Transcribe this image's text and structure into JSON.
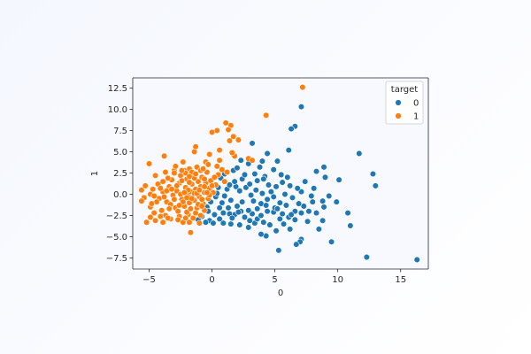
{
  "chart_data": {
    "type": "scatter",
    "title": "",
    "xlabel": "0",
    "ylabel": "1",
    "xlim": [
      -6.3,
      17.2
    ],
    "ylim": [
      -8.8,
      13.7
    ],
    "xticks": [
      -5,
      0,
      5,
      10,
      15
    ],
    "xtick_labels": [
      "−5",
      "0",
      "5",
      "10",
      "15"
    ],
    "yticks": [
      -7.5,
      -5.0,
      -2.5,
      0.0,
      2.5,
      5.0,
      7.5,
      10.0,
      12.5
    ],
    "ytick_labels": [
      "−7.5",
      "−5.0",
      "−2.5",
      "0.0",
      "2.5",
      "5.0",
      "7.5",
      "10.0",
      "12.5"
    ],
    "grid": false,
    "legend": {
      "title": "target",
      "placement": "top-right",
      "entries": [
        "0",
        "1"
      ]
    },
    "colors": {
      "0": "#1f77b4",
      "1": "#ff7f0e",
      "marker_edge": "#ffffff",
      "axes": "#262626",
      "plot_background": "#f7f9fe"
    },
    "series": [
      {
        "name": "0",
        "points": [
          [
            16.3,
            -7.7
          ],
          [
            12.3,
            -7.4
          ],
          [
            9.5,
            -5.6
          ],
          [
            11.7,
            4.8
          ],
          [
            12.8,
            2.4
          ],
          [
            13.0,
            1.0
          ],
          [
            10.1,
            1.7
          ],
          [
            9.0,
            2.0
          ],
          [
            10.8,
            -2.2
          ],
          [
            11.0,
            -3.7
          ],
          [
            9.3,
            -0.2
          ],
          [
            8.9,
            3.2
          ],
          [
            8.3,
            2.7
          ],
          [
            8.8,
            -0.8
          ],
          [
            7.1,
            10.3
          ],
          [
            6.6,
            8.0
          ],
          [
            6.3,
            7.7
          ],
          [
            6.1,
            5.2
          ],
          [
            5.2,
            3.9
          ],
          [
            3.2,
            6.0
          ],
          [
            4.4,
            4.8
          ],
          [
            7.1,
            -5.3
          ],
          [
            7.0,
            -5.6
          ],
          [
            6.7,
            -5.9
          ],
          [
            5.3,
            -6.6
          ],
          [
            6.2,
            -4.1
          ],
          [
            5.1,
            -4.3
          ],
          [
            4.3,
            -4.9
          ],
          [
            3.9,
            -4.7
          ],
          [
            8.5,
            -4.1
          ],
          [
            8.8,
            -3.1
          ],
          [
            8.3,
            -2.2
          ],
          [
            7.7,
            -2.0
          ],
          [
            7.1,
            -2.2
          ],
          [
            6.6,
            -2.0
          ],
          [
            6.1,
            -2.7
          ],
          [
            5.6,
            -2.3
          ],
          [
            5.4,
            -2.9
          ],
          [
            4.9,
            -2.1
          ],
          [
            5.4,
            -1.0
          ],
          [
            6.4,
            -0.4
          ],
          [
            7.1,
            0.3
          ],
          [
            7.9,
            -0.2
          ],
          [
            8.1,
            0.7
          ],
          [
            6.8,
            0.7
          ],
          [
            6.2,
            1.0
          ],
          [
            5.6,
            1.4
          ],
          [
            5.1,
            0.9
          ],
          [
            4.7,
            0.3
          ],
          [
            4.4,
            -0.6
          ],
          [
            3.9,
            -1.1
          ],
          [
            3.6,
            -1.7
          ],
          [
            3.2,
            -2.3
          ],
          [
            2.6,
            -2.7
          ],
          [
            2.3,
            -2.0
          ],
          [
            1.8,
            -2.4
          ],
          [
            1.4,
            -2.3
          ],
          [
            0.9,
            -2.2
          ],
          [
            0.6,
            -1.6
          ],
          [
            0.2,
            -2.4
          ],
          [
            -0.2,
            -3.1
          ],
          [
            0.1,
            -3.4
          ],
          [
            0.9,
            -3.4
          ],
          [
            1.5,
            -3.5
          ],
          [
            2.2,
            -3.6
          ],
          [
            2.9,
            -3.9
          ],
          [
            3.4,
            -3.4
          ],
          [
            3.6,
            -2.9
          ],
          [
            4.1,
            -3.3
          ],
          [
            4.6,
            -3.6
          ],
          [
            2.0,
            -1.4
          ],
          [
            1.5,
            -0.7
          ],
          [
            1.0,
            -0.2
          ],
          [
            2.2,
            0.4
          ],
          [
            2.7,
            0.8
          ],
          [
            3.0,
            1.2
          ],
          [
            3.6,
            1.6
          ],
          [
            4.2,
            2.1
          ],
          [
            4.9,
            2.9
          ],
          [
            5.5,
            2.3
          ],
          [
            3.8,
            3.2
          ],
          [
            2.9,
            3.6
          ],
          [
            2.3,
            4.0
          ],
          [
            1.7,
            2.8
          ],
          [
            1.0,
            2.4
          ],
          [
            0.7,
            1.9
          ],
          [
            0.5,
            0.8
          ],
          [
            0.3,
            -0.3
          ],
          [
            -0.1,
            -0.9
          ],
          [
            -0.4,
            -1.5
          ],
          [
            -0.8,
            -2.6
          ],
          [
            -0.5,
            -3.3
          ],
          [
            -1.1,
            -3.0
          ],
          [
            1.9,
            0.9
          ],
          [
            2.4,
            1.8
          ],
          [
            3.3,
            -0.8
          ],
          [
            4.0,
            0.1
          ],
          [
            4.5,
            1.1
          ],
          [
            5.8,
            0.0
          ],
          [
            6.9,
            -1.1
          ],
          [
            7.6,
            -3.2
          ],
          [
            8.9,
            -1.5
          ],
          [
            9.9,
            -0.9
          ],
          [
            5.0,
            -1.6
          ],
          [
            4.4,
            -2.0
          ],
          [
            3.9,
            -2.5
          ],
          [
            2.9,
            -1.9
          ],
          [
            2.4,
            -0.9
          ],
          [
            1.3,
            -1.6
          ],
          [
            0.6,
            -2.9
          ],
          [
            3.0,
            -3.1
          ],
          [
            5.7,
            -3.5
          ],
          [
            6.6,
            -3.0
          ],
          [
            7.4,
            1.5
          ],
          [
            6.0,
            2.0
          ],
          [
            4.0,
            3.9
          ],
          [
            2.6,
            2.3
          ],
          [
            1.8,
            1.5
          ],
          [
            1.2,
            0.6
          ],
          [
            0.4,
            0.1
          ],
          [
            3.5,
            0.5
          ],
          [
            4.9,
            -0.3
          ],
          [
            5.9,
            -1.3
          ],
          [
            6.3,
            -2.4
          ],
          [
            7.3,
            -1.4
          ],
          [
            8.0,
            -0.9
          ],
          [
            3.1,
            -0.1
          ],
          [
            2.1,
            -2.1
          ],
          [
            1.6,
            -2.8
          ],
          [
            4.3,
            -1.3
          ],
          [
            5.2,
            -1.7
          ],
          [
            4.1,
            1.8
          ],
          [
            3.4,
            2.4
          ],
          [
            2.0,
            3.1
          ],
          [
            1.4,
            1.1
          ],
          [
            0.8,
            -1.0
          ],
          [
            -0.3,
            -2.0
          ]
        ]
      },
      {
        "name": "1",
        "points": [
          [
            7.2,
            12.6
          ],
          [
            4.3,
            9.3
          ],
          [
            1.1,
            8.4
          ],
          [
            1.5,
            8.1
          ],
          [
            1.3,
            7.6
          ],
          [
            0.4,
            7.5
          ],
          [
            0.0,
            7.3
          ],
          [
            1.7,
            6.8
          ],
          [
            2.1,
            6.4
          ],
          [
            1.4,
            6.3
          ],
          [
            -1.3,
            5.6
          ],
          [
            -1.4,
            5.0
          ],
          [
            0.6,
            5.2
          ],
          [
            -0.2,
            4.7
          ],
          [
            1.8,
            4.5
          ],
          [
            2.9,
            4.2
          ],
          [
            3.2,
            4.0
          ],
          [
            -3.8,
            4.5
          ],
          [
            -5.0,
            3.6
          ],
          [
            -2.3,
            3.8
          ],
          [
            -0.5,
            3.8
          ],
          [
            0.4,
            3.3
          ],
          [
            -1.8,
            3.0
          ],
          [
            -3.0,
            2.8
          ],
          [
            -3.7,
            2.6
          ],
          [
            -4.5,
            2.2
          ],
          [
            -5.3,
            1.0
          ],
          [
            -5.6,
            0.5
          ],
          [
            -5.4,
            -0.4
          ],
          [
            -5.6,
            -0.8
          ],
          [
            -4.9,
            -1.5
          ],
          [
            -4.6,
            -2.2
          ],
          [
            -4.9,
            -2.7
          ],
          [
            -4.5,
            -3.1
          ],
          [
            -5.2,
            -3.3
          ],
          [
            -3.9,
            -3.3
          ],
          [
            -3.3,
            -2.9
          ],
          [
            -2.6,
            -2.6
          ],
          [
            -1.9,
            -2.4
          ],
          [
            -1.3,
            -2.2
          ],
          [
            -0.6,
            -1.9
          ],
          [
            -2.3,
            -3.3
          ],
          [
            -1.8,
            -3.3
          ],
          [
            -1.0,
            -3.4
          ],
          [
            -1.7,
            -4.5
          ],
          [
            -4.9,
            0.0
          ],
          [
            -4.7,
            0.6
          ],
          [
            -4.3,
            1.2
          ],
          [
            -4.2,
            -0.5
          ],
          [
            -3.9,
            0.3
          ],
          [
            -3.6,
            -0.9
          ],
          [
            -3.4,
            0.9
          ],
          [
            -3.2,
            1.7
          ],
          [
            -3.1,
            -0.1
          ],
          [
            -2.9,
            -1.6
          ],
          [
            -2.8,
            0.4
          ],
          [
            -2.6,
            1.3
          ],
          [
            -2.5,
            2.2
          ],
          [
            -2.4,
            -0.6
          ],
          [
            -2.2,
            -1.4
          ],
          [
            -2.1,
            0.8
          ],
          [
            -2.0,
            1.8
          ],
          [
            -1.9,
            -0.2
          ],
          [
            -1.8,
            -1.0
          ],
          [
            -1.7,
            0.3
          ],
          [
            -1.6,
            1.2
          ],
          [
            -1.5,
            2.2
          ],
          [
            -1.4,
            -0.7
          ],
          [
            -1.3,
            0.6
          ],
          [
            -1.2,
            -1.6
          ],
          [
            -1.1,
            1.5
          ],
          [
            -1.0,
            -0.3
          ],
          [
            -0.9,
            0.9
          ],
          [
            -0.8,
            2.0
          ],
          [
            -0.7,
            -1.1
          ],
          [
            -0.6,
            0.2
          ],
          [
            -0.5,
            1.3
          ],
          [
            -0.3,
            -0.5
          ],
          [
            -0.2,
            0.7
          ],
          [
            -0.1,
            1.6
          ],
          [
            0.1,
            0.2
          ],
          [
            0.3,
            1.1
          ],
          [
            0.5,
            2.3
          ],
          [
            0.8,
            2.9
          ],
          [
            1.0,
            1.5
          ],
          [
            1.2,
            2.6
          ],
          [
            -4.0,
            -1.9
          ],
          [
            -3.7,
            -2.5
          ],
          [
            -3.5,
            1.9
          ],
          [
            -3.3,
            -1.2
          ],
          [
            -3.0,
            2.5
          ],
          [
            -2.7,
            -2.0
          ],
          [
            -2.5,
            0.0
          ],
          [
            -2.3,
            -0.9
          ],
          [
            -2.2,
            2.8
          ],
          [
            -2.0,
            -2.1
          ],
          [
            -1.9,
            0.5
          ],
          [
            -1.7,
            -1.7
          ],
          [
            -1.6,
            2.6
          ],
          [
            -1.4,
            0.1
          ],
          [
            -1.2,
            3.2
          ],
          [
            -1.1,
            -1.2
          ],
          [
            -0.9,
            2.8
          ],
          [
            -0.8,
            -0.6
          ],
          [
            -0.6,
            1.8
          ],
          [
            -0.4,
            2.6
          ],
          [
            -0.2,
            -0.1
          ],
          [
            0.0,
            1.0
          ],
          [
            0.2,
            2.0
          ],
          [
            -4.4,
            -0.9
          ],
          [
            -4.1,
            0.7
          ],
          [
            -3.8,
            -0.3
          ],
          [
            -3.6,
            0.4
          ],
          [
            -3.4,
            -1.7
          ],
          [
            -3.2,
            0.6
          ],
          [
            -3.0,
            -0.6
          ],
          [
            -2.8,
            1.0
          ],
          [
            -2.6,
            -1.3
          ],
          [
            -2.4,
            1.6
          ],
          [
            -2.2,
            0.2
          ],
          [
            -2.0,
            -0.4
          ],
          [
            -1.8,
            1.4
          ],
          [
            -1.6,
            -0.5
          ],
          [
            -1.4,
            1.9
          ],
          [
            -1.2,
            0.1
          ],
          [
            -1.0,
            0.5
          ],
          [
            -0.8,
            -1.4
          ],
          [
            -0.6,
            0.9
          ],
          [
            -0.4,
            0.2
          ],
          [
            -2.9,
            3.3
          ],
          [
            -2.1,
            2.5
          ],
          [
            -1.3,
            2.4
          ],
          [
            -3.9,
            1.5
          ],
          [
            -4.6,
            -0.2
          ],
          [
            -4.8,
            -1.1
          ],
          [
            -4.1,
            -2.6
          ],
          [
            -3.5,
            -2.8
          ],
          [
            -2.7,
            -3.0
          ],
          [
            -2.1,
            -2.8
          ],
          [
            -1.5,
            -2.8
          ],
          [
            -0.9,
            -2.5
          ],
          [
            -0.3,
            3.5
          ],
          [
            0.6,
            4.0
          ],
          [
            1.6,
            4.9
          ],
          [
            -0.7,
            3.0
          ],
          [
            -1.8,
            2.1
          ],
          [
            -2.4,
            2.8
          ]
        ]
      }
    ]
  }
}
